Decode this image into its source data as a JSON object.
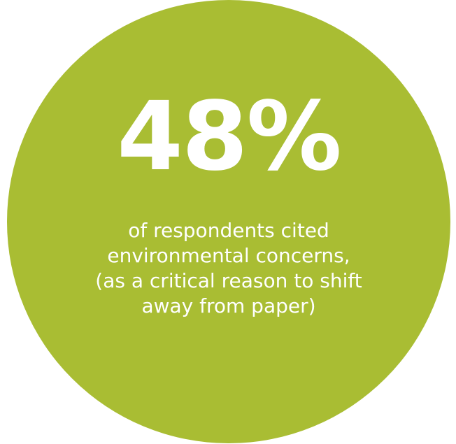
{
  "stat": {
    "value": "48%",
    "caption_lines": [
      "of respondents cited",
      "environmental concerns,",
      "(as a critical reason to shift",
      "away from paper)"
    ]
  },
  "colors": {
    "circle": "#a9bd33",
    "text": "#ffffff",
    "background": "#ffffff"
  }
}
